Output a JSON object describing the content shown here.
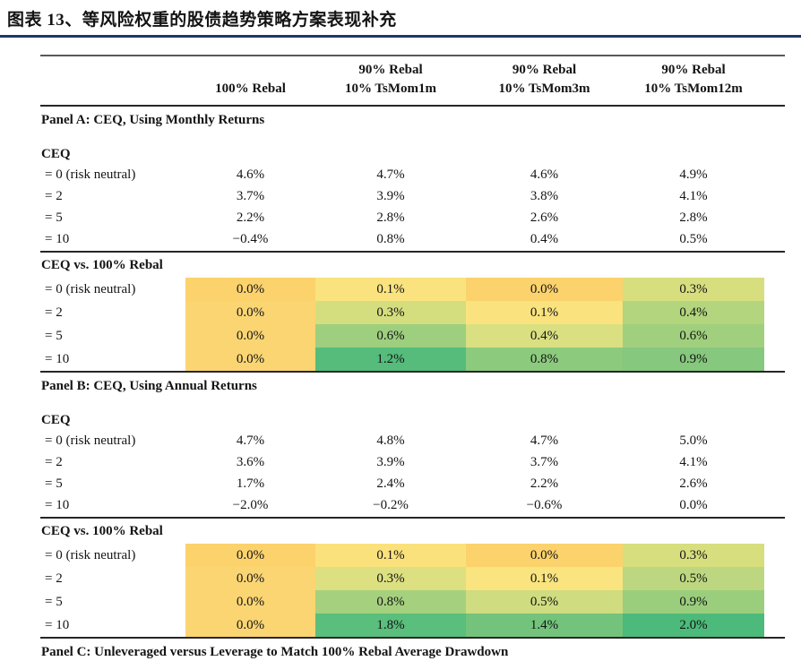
{
  "title": "图表 13、等风险权重的股债趋势策略方案表现补充",
  "colors": {
    "title_rule": "#1F3864",
    "table_top_rule": "#595959",
    "heavy_rule": "#262626",
    "text": "#141414"
  },
  "table": {
    "column_headers": [
      {
        "line1": "",
        "line2": ""
      },
      {
        "line1": "",
        "line2": "100% Rebal"
      },
      {
        "line1": "90% Rebal",
        "line2": "10% TsMom1m"
      },
      {
        "line1": "90% Rebal",
        "line2": "10% TsMom3m"
      },
      {
        "line1": "90% Rebal",
        "line2": "10% TsMom12m"
      }
    ],
    "panels": [
      {
        "title": "Panel A: CEQ, Using Monthly Returns",
        "sections": [
          {
            "title": "CEQ",
            "colored": false,
            "rows": [
              {
                "label": "= 0 (risk neutral)",
                "values": [
                  "4.6%",
                  "4.7%",
                  "4.6%",
                  "4.9%"
                ]
              },
              {
                "label": "= 2",
                "values": [
                  "3.7%",
                  "3.9%",
                  "3.8%",
                  "4.1%"
                ]
              },
              {
                "label": "= 5",
                "values": [
                  "2.2%",
                  "2.8%",
                  "2.6%",
                  "2.8%"
                ]
              },
              {
                "label": "= 10",
                "values": [
                  "−0.4%",
                  "0.8%",
                  "0.4%",
                  "0.5%"
                ]
              }
            ]
          },
          {
            "title": "CEQ vs. 100% Rebal",
            "colored": true,
            "rows": [
              {
                "label": "= 0 (risk neutral)",
                "values": [
                  "0.0%",
                  "0.1%",
                  "0.0%",
                  "0.3%"
                ],
                "cell_colors": [
                  "#FBD26C",
                  "#FAE37E",
                  "#FBD26C",
                  "#D7DE7E"
                ]
              },
              {
                "label": "= 2",
                "values": [
                  "0.0%",
                  "0.3%",
                  "0.1%",
                  "0.4%"
                ],
                "cell_colors": [
                  "#FAD572",
                  "#D5DE7E",
                  "#FAE37E",
                  "#B2D57D"
                ]
              },
              {
                "label": "= 5",
                "values": [
                  "0.0%",
                  "0.6%",
                  "0.4%",
                  "0.6%"
                ],
                "cell_colors": [
                  "#FAD572",
                  "#9DCF7E",
                  "#DAE081",
                  "#A0D07E"
                ]
              },
              {
                "label": "= 10",
                "values": [
                  "0.0%",
                  "1.2%",
                  "0.8%",
                  "0.9%"
                ],
                "cell_colors": [
                  "#FAD572",
                  "#55BC7B",
                  "#8CCA7D",
                  "#86C87D"
                ]
              }
            ]
          }
        ]
      },
      {
        "title": "Panel B: CEQ, Using Annual Returns",
        "sections": [
          {
            "title": "CEQ",
            "colored": false,
            "rows": [
              {
                "label": "= 0 (risk neutral)",
                "values": [
                  "4.7%",
                  "4.8%",
                  "4.7%",
                  "5.0%"
                ]
              },
              {
                "label": "= 2",
                "values": [
                  "3.6%",
                  "3.9%",
                  "3.7%",
                  "4.1%"
                ]
              },
              {
                "label": "= 5",
                "values": [
                  "1.7%",
                  "2.4%",
                  "2.2%",
                  "2.6%"
                ]
              },
              {
                "label": "= 10",
                "values": [
                  "−2.0%",
                  "−0.2%",
                  "−0.6%",
                  "0.0%"
                ]
              }
            ]
          },
          {
            "title": "CEQ vs. 100% Rebal",
            "colored": true,
            "rows": [
              {
                "label": "= 0 (risk neutral)",
                "values": [
                  "0.0%",
                  "0.1%",
                  "0.0%",
                  "0.3%"
                ],
                "cell_colors": [
                  "#FBD26C",
                  "#FBE17C",
                  "#FBD26C",
                  "#D7DE7E"
                ]
              },
              {
                "label": "= 2",
                "values": [
                  "0.0%",
                  "0.3%",
                  "0.1%",
                  "0.5%"
                ],
                "cell_colors": [
                  "#FAD572",
                  "#DCE081",
                  "#FAE47F",
                  "#BCD77F"
                ]
              },
              {
                "label": "= 5",
                "values": [
                  "0.0%",
                  "0.8%",
                  "0.5%",
                  "0.9%"
                ],
                "cell_colors": [
                  "#FAD572",
                  "#A5D17E",
                  "#CFDC80",
                  "#9ACE7D"
                ]
              },
              {
                "label": "= 10",
                "values": [
                  "0.0%",
                  "1.8%",
                  "1.4%",
                  "2.0%"
                ],
                "cell_colors": [
                  "#FAD572",
                  "#5ABE7C",
                  "#74C37C",
                  "#4CBA7A"
                ]
              }
            ]
          }
        ]
      },
      {
        "title": "Panel C: Unleveraged versus Leverage to Match 100% Rebal Average Drawdown",
        "sections": []
      }
    ]
  }
}
